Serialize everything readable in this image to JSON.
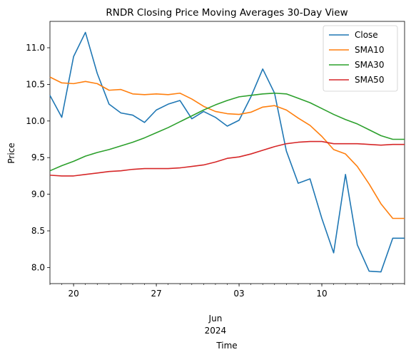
{
  "chart_data": {
    "type": "line",
    "title": "RNDR Closing Price Moving Averages 30-Day View",
    "xlabel": "Time",
    "ylabel": "Price",
    "x": [
      "2024-05-18",
      "2024-05-19",
      "2024-05-20",
      "2024-05-21",
      "2024-05-22",
      "2024-05-23",
      "2024-05-24",
      "2024-05-25",
      "2024-05-26",
      "2024-05-27",
      "2024-05-28",
      "2024-05-29",
      "2024-05-30",
      "2024-05-31",
      "2024-06-01",
      "2024-06-02",
      "2024-06-03",
      "2024-06-04",
      "2024-06-05",
      "2024-06-06",
      "2024-06-07",
      "2024-06-08",
      "2024-06-09",
      "2024-06-10",
      "2024-06-11",
      "2024-06-12",
      "2024-06-13",
      "2024-06-14",
      "2024-06-15",
      "2024-06-16",
      "2024-06-17"
    ],
    "xlim": [
      "2024-05-18",
      "2024-06-17"
    ],
    "x_ticks": [
      {
        "date": "2024-05-20",
        "label": "20"
      },
      {
        "date": "2024-05-27",
        "label": "27"
      },
      {
        "date": "2024-06-03",
        "label": "03"
      },
      {
        "date": "2024-06-10",
        "label": "10"
      }
    ],
    "x_month_label": {
      "date": "2024-06-01",
      "month": "Jun",
      "year": "2024"
    },
    "ylim": [
      7.78,
      11.36
    ],
    "y_ticks": [
      "8.0",
      "8.5",
      "9.0",
      "9.5",
      "10.0",
      "10.5",
      "11.0"
    ],
    "grid": false,
    "legend_position": "top-right",
    "series": [
      {
        "name": "Close",
        "color": "#1f77b4",
        "values": [
          10.35,
          10.05,
          10.88,
          11.21,
          10.65,
          10.23,
          10.11,
          10.08,
          9.98,
          10.15,
          10.23,
          10.28,
          10.03,
          10.13,
          10.05,
          9.93,
          10.01,
          10.33,
          10.71,
          10.38,
          9.59,
          9.15,
          9.21,
          8.67,
          8.2,
          9.27,
          8.31,
          7.95,
          7.94,
          8.4,
          8.4
        ]
      },
      {
        "name": "SMA10",
        "color": "#ff7f0e",
        "values": [
          10.6,
          10.52,
          10.51,
          10.54,
          10.51,
          10.42,
          10.43,
          10.37,
          10.36,
          10.37,
          10.36,
          10.38,
          10.3,
          10.2,
          10.13,
          10.1,
          10.09,
          10.12,
          10.19,
          10.21,
          10.15,
          10.04,
          9.94,
          9.79,
          9.61,
          9.55,
          9.38,
          9.14,
          8.87,
          8.67,
          8.67
        ]
      },
      {
        "name": "SMA30",
        "color": "#2ca02c",
        "values": [
          9.32,
          9.39,
          9.45,
          9.52,
          9.57,
          9.61,
          9.66,
          9.71,
          9.77,
          9.84,
          9.91,
          9.99,
          10.07,
          10.15,
          10.22,
          10.28,
          10.33,
          10.35,
          10.37,
          10.38,
          10.37,
          10.31,
          10.25,
          10.17,
          10.09,
          10.02,
          9.96,
          9.88,
          9.8,
          9.75,
          9.75
        ]
      },
      {
        "name": "SMA50",
        "color": "#d62728",
        "values": [
          9.26,
          9.25,
          9.25,
          9.27,
          9.29,
          9.31,
          9.32,
          9.34,
          9.35,
          9.35,
          9.35,
          9.36,
          9.38,
          9.4,
          9.44,
          9.49,
          9.51,
          9.55,
          9.6,
          9.65,
          9.69,
          9.71,
          9.72,
          9.72,
          9.69,
          9.69,
          9.69,
          9.68,
          9.67,
          9.68,
          9.68
        ]
      }
    ]
  }
}
